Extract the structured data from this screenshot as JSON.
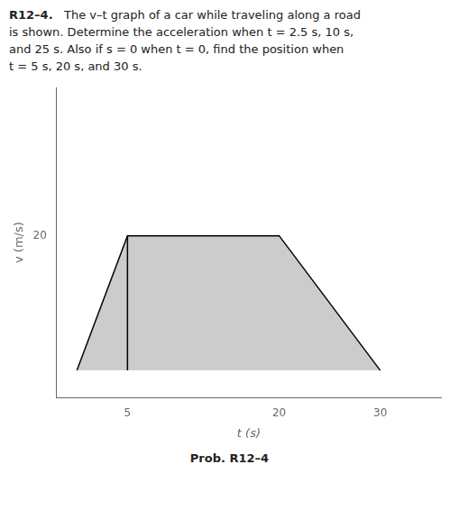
{
  "chart_data": {
    "type": "area",
    "title": "R12–4.",
    "subtitle": [
      "   The v–t graph of a car while traveling along a road",
      "is shown. Determine the acceleration when t = 2.5 s, 10 s,",
      "and 25 s. Also if s = 0 when t = 0, find the position when",
      "t = 5 s, 20 s, and 30 s."
    ],
    "annotations": [
      "Prob. R12–4"
    ],
    "x_label": "t (s)",
    "y_label": "v (m/s)",
    "series": [
      {
        "type": "area",
        "color": "#cccccc",
        "x": [
          0,
          5,
          20,
          30
        ],
        "values": [
          0,
          20,
          20,
          0
        ]
      },
      {
        "type": "line",
        "color": "#000000",
        "x": [
          0,
          5,
          20,
          30
        ],
        "values": [
          0,
          20,
          20,
          0
        ]
      },
      {
        "type": "line",
        "color": "#000000",
        "x": [
          5,
          5
        ],
        "values": [
          0,
          20
        ]
      }
    ],
    "xlim": [
      -2,
      36
    ],
    "ylim": [
      -4,
      42
    ],
    "xticks": [
      5,
      20,
      30
    ],
    "yticks": [
      20
    ],
    "grid": false
  }
}
